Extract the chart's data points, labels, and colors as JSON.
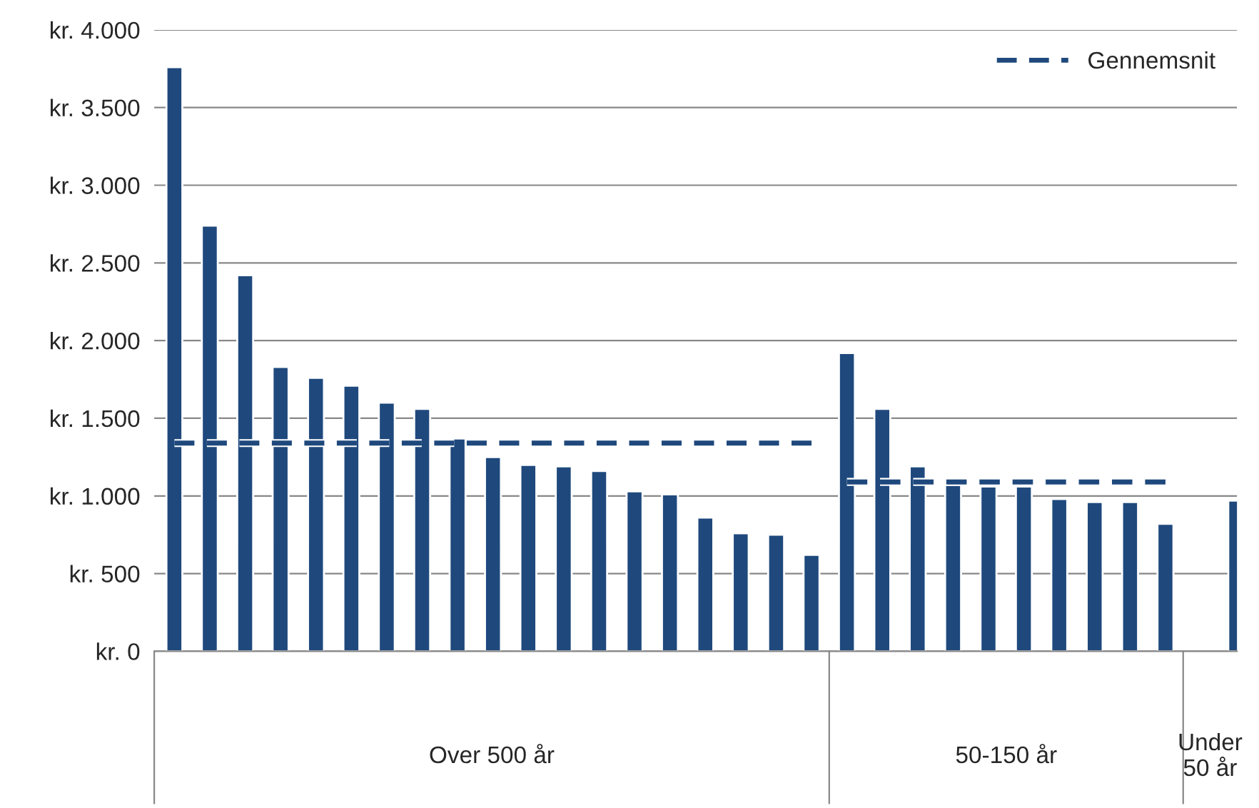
{
  "chart_data": {
    "type": "bar",
    "categories": [
      null,
      null,
      null,
      null,
      null,
      null,
      null,
      null,
      null,
      null,
      null,
      null,
      null,
      null,
      null,
      null,
      null,
      null,
      null,
      null,
      null,
      null,
      null,
      null,
      null,
      null,
      null,
      null,
      null,
      null,
      null
    ],
    "series": [
      {
        "color": "#1f497d",
        "values": [
          3760,
          2740,
          2420,
          1830,
          1760,
          1710,
          1600,
          1560,
          1370,
          1250,
          1200,
          1190,
          1160,
          1030,
          1010,
          860,
          760,
          750,
          620,
          1920,
          1560,
          1190,
          1070,
          1060,
          1060,
          980,
          960,
          960,
          820,
          null,
          970
        ]
      },
      {
        "type": "line",
        "name": "Gennemsnit",
        "color": "#1f497d",
        "line_style": "dashed",
        "values": [
          1340,
          1340,
          1340,
          1340,
          1340,
          1340,
          1340,
          1340,
          1340,
          1340,
          1340,
          1340,
          1340,
          1340,
          1340,
          1340,
          1340,
          1340,
          1340,
          null,
          null,
          null,
          null,
          null,
          null,
          null,
          null,
          null,
          null,
          null,
          null
        ]
      },
      {
        "type": "line",
        "color": "#1f497d",
        "line_style": "dashed",
        "values": [
          null,
          null,
          null,
          null,
          null,
          null,
          null,
          null,
          null,
          null,
          null,
          null,
          null,
          null,
          null,
          null,
          null,
          null,
          null,
          1090,
          1090,
          1090,
          1090,
          1090,
          1090,
          1090,
          1090,
          1090,
          1090,
          null,
          null
        ]
      }
    ],
    "ylim": [
      0,
      4000
    ],
    "yticks": [
      {
        "value": 0,
        "label": "kr. 0"
      },
      {
        "value": 500,
        "label": "kr. 500"
      },
      {
        "value": 1000,
        "label": "kr. 1.000"
      },
      {
        "value": 1500,
        "label": "kr. 1.500"
      },
      {
        "value": 2000,
        "label": "kr. 2.000"
      },
      {
        "value": 2500,
        "label": "kr. 2.500"
      },
      {
        "value": 3000,
        "label": "kr. 3.000"
      },
      {
        "value": 3500,
        "label": "kr. 3.500"
      },
      {
        "value": 4000,
        "label": "kr. 4.000"
      }
    ],
    "grid": "y",
    "legend": "top right",
    "annotations": [
      "Over 500 år",
      "50-150 år",
      "Under\n50 år"
    ]
  }
}
